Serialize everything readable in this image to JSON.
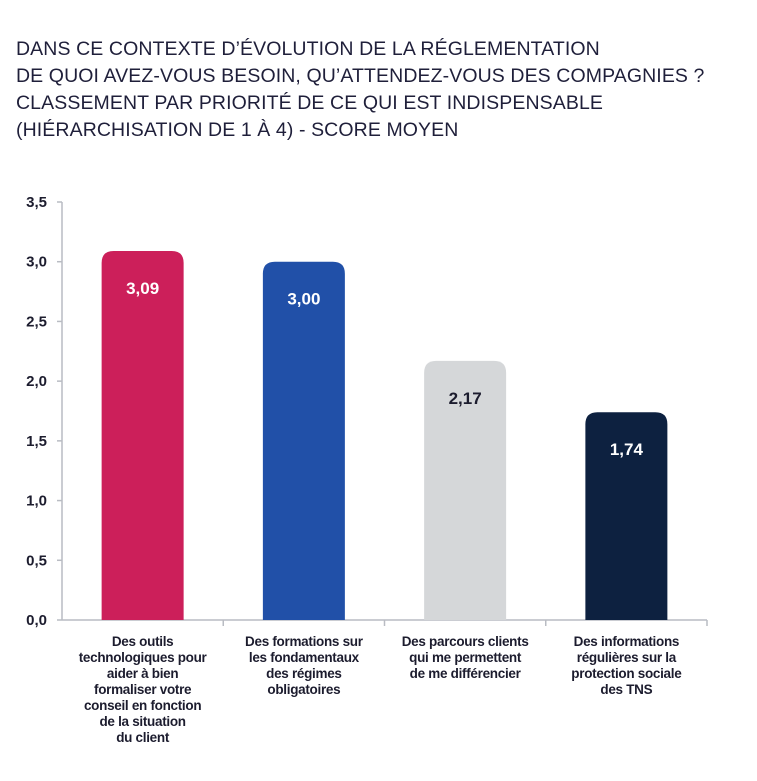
{
  "title_lines": [
    "DANS CE CONTEXTE D’ÉVOLUTION DE LA RÉGLEMENTATION",
    "DE QUOI AVEZ-VOUS BESOIN, QU’ATTENDEZ-VOUS DES COMPAGNIES ?",
    "CLASSEMENT PAR PRIORITÉ DE CE QUI EST INDISPENSABLE",
    "(HIÉRARCHISATION DE 1 À 4) - SCORE MOYEN"
  ],
  "chart_data": {
    "type": "bar",
    "title": "DANS CE CONTEXTE D’ÉVOLUTION DE LA RÉGLEMENTATION DE QUOI AVEZ-VOUS BESOIN, QU’ATTENDEZ-VOUS DES COMPAGNIES ? CLASSEMENT PAR PRIORITÉ DE CE QUI EST INDISPENSABLE (HIÉRARCHISATION DE 1 À 4) - SCORE MOYEN",
    "xlabel": "",
    "ylabel": "",
    "ylim": [
      0,
      3.5
    ],
    "yticks": [
      "0,0",
      "0,5",
      "1,0",
      "1,5",
      "2,0",
      "2,5",
      "3,0",
      "3,5"
    ],
    "grid": false,
    "categories": [
      [
        "Des outils",
        "technologiques pour",
        "aider à bien",
        "formaliser votre",
        "conseil en fonction",
        "de la situation",
        "du client"
      ],
      [
        "Des formations sur",
        "les fondamentaux",
        "des régimes",
        "obligatoires"
      ],
      [
        "Des parcours clients",
        "qui me permettent",
        "de me différencier"
      ],
      [
        "Des informations",
        "régulières sur la",
        "protection sociale",
        "des TNS"
      ]
    ],
    "values": [
      3.09,
      3.0,
      2.17,
      1.74
    ],
    "value_labels": [
      "3,09",
      "3,00",
      "2,17",
      "1,74"
    ],
    "colors": [
      "#cc1f5a",
      "#2150a8",
      "#d5d7d9",
      "#0d2140"
    ],
    "label_colors": [
      "#ffffff",
      "#ffffff",
      "#1c1c2e",
      "#ffffff"
    ]
  }
}
